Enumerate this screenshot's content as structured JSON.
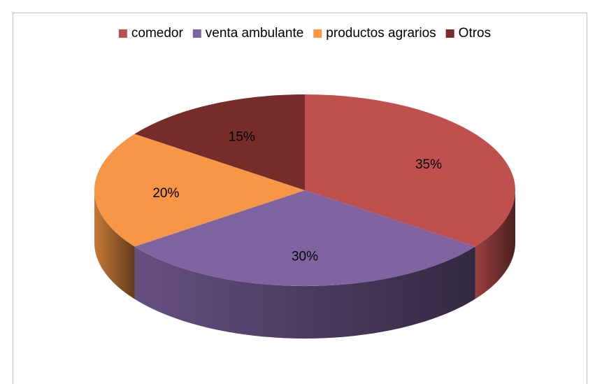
{
  "chart_data": {
    "type": "pie3d",
    "categories": [
      "comedor",
      "venta ambulante",
      "productos agrarios",
      "Otros"
    ],
    "values": [
      35,
      30,
      20,
      15
    ],
    "value_labels": [
      "35%",
      "30%",
      "20%",
      "15%"
    ],
    "colors": [
      "#c0504d",
      "#8064a2",
      "#f79646",
      "#772c2a"
    ],
    "legend": "top"
  }
}
